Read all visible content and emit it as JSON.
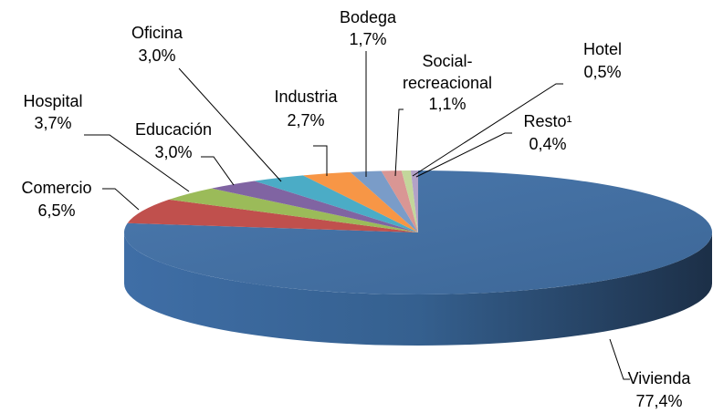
{
  "chart_data": {
    "type": "pie",
    "categories": [
      "Vivienda",
      "Comercio",
      "Hospital",
      "Educación",
      "Oficina",
      "Industria",
      "Bodega",
      "Social-recreacional",
      "Hotel",
      "Resto¹"
    ],
    "values": [
      77.4,
      6.5,
      3.7,
      3.0,
      3.0,
      2.7,
      1.7,
      1.1,
      0.5,
      0.4
    ],
    "value_labels": [
      "77,4%",
      "6,5%",
      "3,7%",
      "3,0%",
      "3,0%",
      "2,7%",
      "1,7%",
      "1,1%",
      "0,5%",
      "0,4%"
    ],
    "colors": [
      "#4f81bd",
      "#c0504d",
      "#9bbb59",
      "#8064a2",
      "#4bacc6",
      "#f79646",
      "#7a9cc8",
      "#d99694",
      "#c3d69b",
      "#b3a2c7"
    ]
  }
}
